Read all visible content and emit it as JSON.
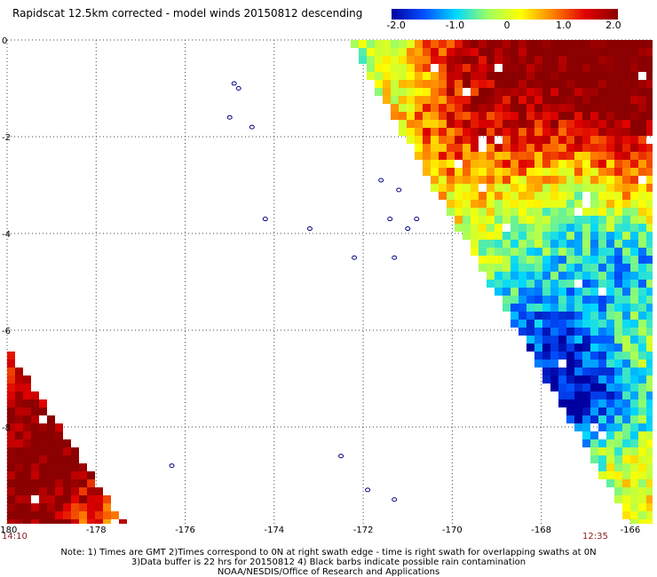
{
  "header": {
    "title": "Rapidscat 12.5km corrected - model winds 20150812 descending"
  },
  "colorbar": {
    "labels": [
      "-2.0",
      "-1.0",
      "0",
      "1.0",
      "2.0"
    ],
    "stops": [
      "#0000a0",
      "#0050ff",
      "#00d8ff",
      "#a0ff60",
      "#ffff00",
      "#ff8000",
      "#e00000",
      "#8b0000"
    ]
  },
  "chart_data": {
    "type": "heatmap",
    "title": "Rapidscat 12.5km corrected - model winds 20150812 descending",
    "x_ticks": [
      "-180",
      "-178",
      "-176",
      "-174",
      "-172",
      "-170",
      "-168",
      "-166"
    ],
    "y_ticks": [
      "0",
      "-2",
      "-4",
      "-6",
      "-8"
    ],
    "xlim": [
      -180,
      -165.5
    ],
    "ylim": [
      -10,
      0
    ],
    "value_range": [
      -2.0,
      2.0
    ],
    "grid": true,
    "swaths": [
      {
        "name": "right",
        "time": "12:35"
      },
      {
        "name": "left",
        "time": "14:10"
      }
    ],
    "islands": [
      {
        "lon": -174.9,
        "lat": -0.9
      },
      {
        "lon": -174.8,
        "lat": -1.0
      },
      {
        "lon": -175.0,
        "lat": -1.6
      },
      {
        "lon": -174.5,
        "lat": -1.8
      },
      {
        "lon": -171.6,
        "lat": -2.9
      },
      {
        "lon": -171.2,
        "lat": -3.1
      },
      {
        "lon": -171.4,
        "lat": -3.7
      },
      {
        "lon": -170.8,
        "lat": -3.7
      },
      {
        "lon": -171.0,
        "lat": -3.9
      },
      {
        "lon": -173.2,
        "lat": -3.9
      },
      {
        "lon": -174.2,
        "lat": -3.7
      },
      {
        "lon": -172.2,
        "lat": -4.5
      },
      {
        "lon": -171.3,
        "lat": -4.5
      },
      {
        "lon": -172.5,
        "lat": -8.6
      },
      {
        "lon": -171.9,
        "lat": -9.3
      },
      {
        "lon": -171.3,
        "lat": -9.5
      },
      {
        "lon": -176.3,
        "lat": -8.8
      }
    ]
  },
  "footer": {
    "time_left": "14:10",
    "time_right": "12:35",
    "note_line1": "Note: 1) Times are GMT 2)Times correspond to 0N at right swath edge - time is right swath for overlapping swaths at 0N",
    "note_line2": "3)Data buffer is 22 hrs for 20150812 4) Black barbs indicate possible rain contamination",
    "credit": "NOAA/NESDIS/Office of Research and Applications"
  }
}
